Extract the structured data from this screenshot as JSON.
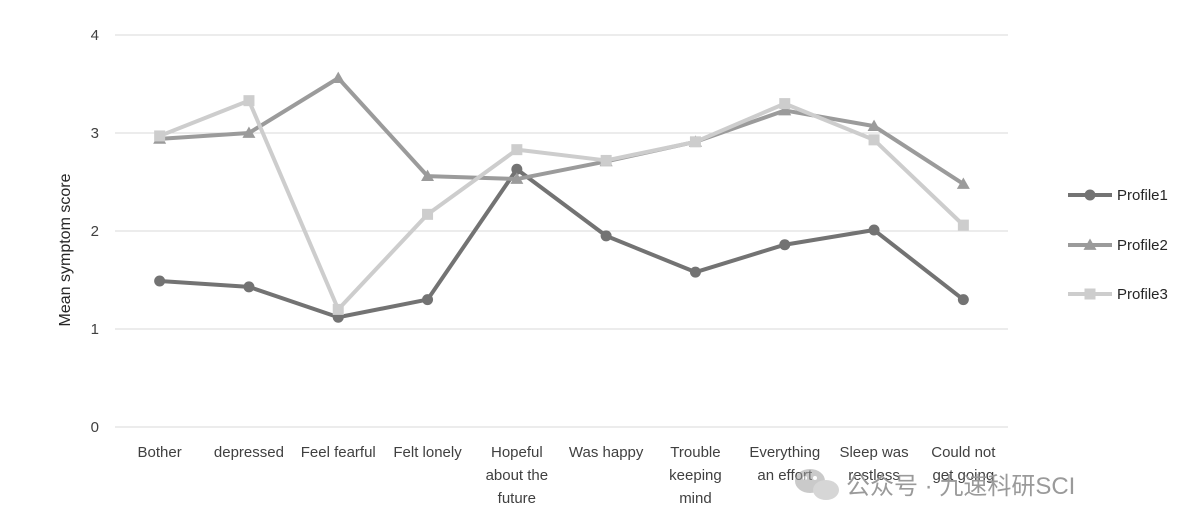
{
  "chart_data": {
    "type": "line",
    "title": "",
    "xlabel": "",
    "ylabel": "Mean symptom score",
    "ylim": [
      0,
      4
    ],
    "yticks": [
      0,
      1,
      2,
      3,
      4
    ],
    "grid": "horizontal",
    "legend": "right",
    "categories": [
      [
        "Bother"
      ],
      [
        "depressed"
      ],
      [
        "Feel fearful"
      ],
      [
        "Felt lonely"
      ],
      [
        "Hopeful",
        "about the",
        "future"
      ],
      [
        "Was happy"
      ],
      [
        "Trouble",
        "keeping",
        "mind"
      ],
      [
        "Everything",
        "an effort"
      ],
      [
        "Sleep was",
        "restless"
      ],
      [
        "Could not",
        "get going"
      ]
    ],
    "series": [
      {
        "name": "Profile1",
        "color": "#737373",
        "marker": "circle",
        "values": [
          1.49,
          1.43,
          1.12,
          1.3,
          2.63,
          1.95,
          1.58,
          1.86,
          2.01,
          1.3
        ]
      },
      {
        "name": "Profile2",
        "color": "#9b9b9b",
        "marker": "triangle",
        "values": [
          2.94,
          3.0,
          3.56,
          2.56,
          2.53,
          2.71,
          2.91,
          3.23,
          3.07,
          2.48
        ]
      },
      {
        "name": "Profile3",
        "color": "#cdcdcd",
        "marker": "square",
        "values": [
          2.97,
          3.33,
          1.2,
          2.17,
          2.83,
          2.72,
          2.91,
          3.3,
          2.93,
          2.06
        ]
      }
    ]
  },
  "watermark": {
    "text": "公众号 · 九速科研SCI",
    "icon": "wechat-icon"
  }
}
